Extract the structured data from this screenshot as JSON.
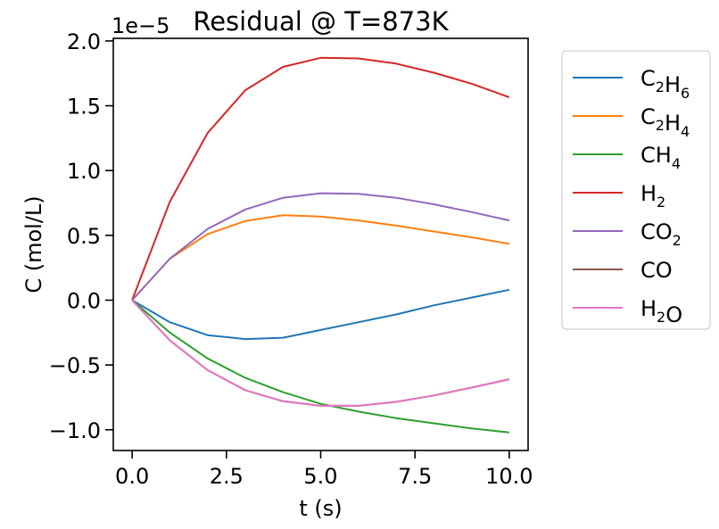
{
  "chart_data": {
    "type": "line",
    "title": "Residual @ T=873K",
    "xlabel": "t (s)",
    "ylabel": "C (mol/L)",
    "offset_text": "1e−5",
    "xlim": [
      -0.5,
      10.5
    ],
    "ylim": [
      -1.16,
      2.02
    ],
    "xticks": [
      0.0,
      2.5,
      5.0,
      7.5,
      10.0
    ],
    "xtick_labels": [
      "0.0",
      "2.5",
      "5.0",
      "7.5",
      "10.0"
    ],
    "yticks": [
      -1.0,
      -0.5,
      0.0,
      0.5,
      1.0,
      1.5,
      2.0
    ],
    "ytick_labels": [
      "−1.0",
      "−0.5",
      "0.0",
      "0.5",
      "1.0",
      "1.5",
      "2.0"
    ],
    "grid": false,
    "legend_position": "outside-right",
    "x": [
      0,
      1,
      2,
      3,
      4,
      5,
      6,
      7,
      8,
      9,
      10
    ],
    "series": [
      {
        "name": "C2H6",
        "label_base": "C",
        "label_sub1": "2",
        "label_mid": "H",
        "label_sub2": "6",
        "color": "#1f77b4",
        "values": [
          0.0,
          -0.17,
          -0.27,
          -0.3,
          -0.29,
          -0.23,
          -0.17,
          -0.11,
          -0.04,
          0.02,
          0.08
        ]
      },
      {
        "name": "C2H4",
        "label_base": "C",
        "label_sub1": "2",
        "label_mid": "H",
        "label_sub2": "4",
        "color": "#ff7f0e",
        "values": [
          0.0,
          0.32,
          0.51,
          0.61,
          0.655,
          0.645,
          0.615,
          0.575,
          0.53,
          0.485,
          0.435
        ]
      },
      {
        "name": "CH4",
        "label_base": "CH",
        "label_sub1": "4",
        "label_mid": "",
        "label_sub2": "",
        "color": "#2ca02c",
        "values": [
          0.0,
          -0.25,
          -0.45,
          -0.6,
          -0.71,
          -0.8,
          -0.86,
          -0.91,
          -0.95,
          -0.99,
          -1.02
        ]
      },
      {
        "name": "H2",
        "label_base": "H",
        "label_sub1": "2",
        "label_mid": "",
        "label_sub2": "",
        "color": "#d62728",
        "values": [
          0.0,
          0.76,
          1.29,
          1.62,
          1.8,
          1.87,
          1.865,
          1.825,
          1.755,
          1.67,
          1.565
        ]
      },
      {
        "name": "CO2",
        "label_base": "CO",
        "label_sub1": "2",
        "label_mid": "",
        "label_sub2": "",
        "color": "#9467bd",
        "values": [
          0.0,
          0.32,
          0.55,
          0.7,
          0.79,
          0.825,
          0.82,
          0.79,
          0.74,
          0.68,
          0.615
        ]
      },
      {
        "name": "CO",
        "label_base": "CO",
        "label_sub1": "",
        "label_mid": "",
        "label_sub2": "",
        "color": "#8c564b",
        "values": [
          0.0,
          -0.31,
          -0.54,
          -0.695,
          -0.78,
          -0.815,
          -0.815,
          -0.785,
          -0.735,
          -0.675,
          -0.61
        ]
      },
      {
        "name": "H2O",
        "label_base": "H",
        "label_sub1": "2",
        "label_mid": "O",
        "label_sub2": "",
        "color": "#e377c2",
        "values": [
          0.0,
          -0.31,
          -0.54,
          -0.695,
          -0.78,
          -0.815,
          -0.815,
          -0.785,
          -0.735,
          -0.675,
          -0.61
        ]
      }
    ]
  }
}
